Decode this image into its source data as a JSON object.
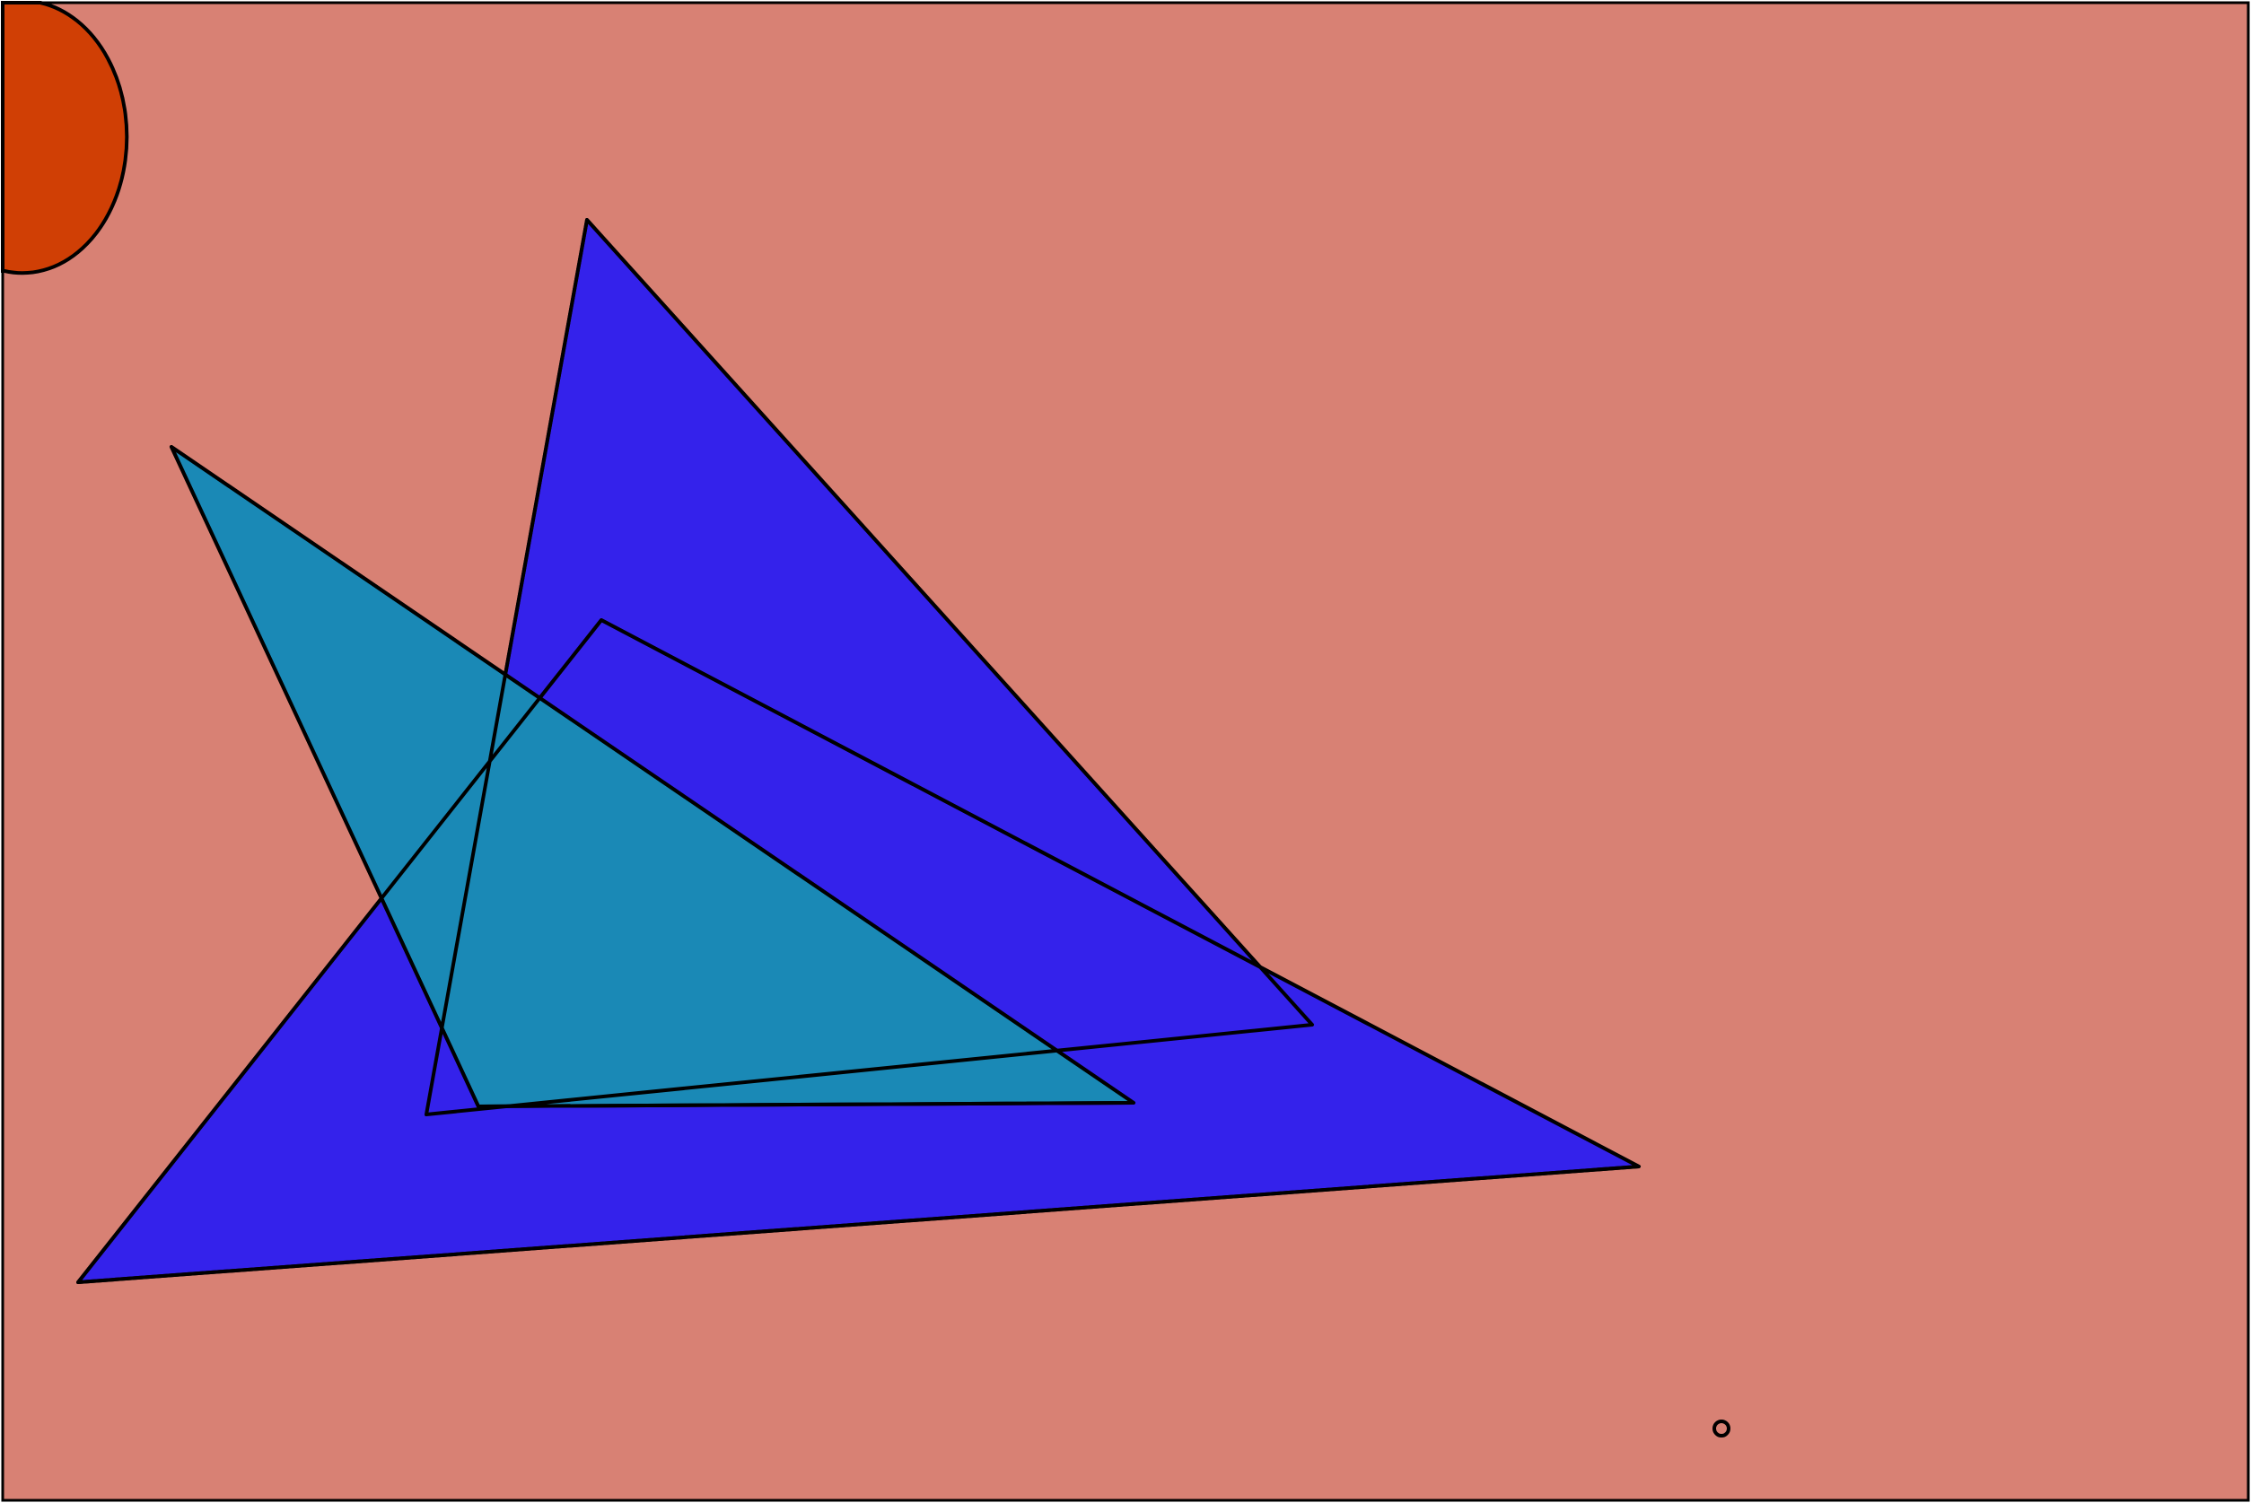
{
  "scene": {
    "colors": {
      "background": "#d88174",
      "stroke": "#000000",
      "circle_fill": "#d03f05",
      "blue_fill": "#3422eb",
      "teal_fill": "#1a89b6"
    },
    "shapes": [
      {
        "name": "orange-circle",
        "kind": "circle",
        "color_key": "circle_fill"
      },
      {
        "name": "blue-triangle-tall",
        "kind": "triangle",
        "color_key": "blue_fill"
      },
      {
        "name": "blue-triangle-wide",
        "kind": "triangle",
        "color_key": "blue_fill"
      },
      {
        "name": "teal-triangle",
        "kind": "triangle",
        "color_key": "teal_fill"
      },
      {
        "name": "small-ring",
        "kind": "circle",
        "color_key": "stroke"
      }
    ]
  }
}
